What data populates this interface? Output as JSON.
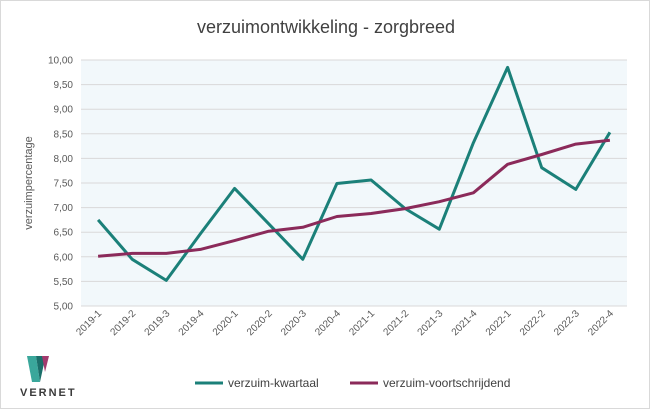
{
  "chart_data": {
    "type": "line",
    "title": "verzuimontwikkeling - zorgbreed",
    "ylabel": "verzuimpercentage",
    "xlabel": "",
    "ylim": [
      5.0,
      10.0
    ],
    "y_ticks": [
      "5,00",
      "5,50",
      "6,00",
      "6,50",
      "7,00",
      "7,50",
      "8,00",
      "8,50",
      "9,00",
      "9,50",
      "10,00"
    ],
    "categories": [
      "2019-1",
      "2019-2",
      "2019-3",
      "2019-4",
      "2020-1",
      "2020-2",
      "2020-3",
      "2020-4",
      "2021-1",
      "2021-2",
      "2021-3",
      "2021-4",
      "2022-1",
      "2022-2",
      "2022-3",
      "2022-4"
    ],
    "series": [
      {
        "name": "verzuim-kwartaal",
        "color": "#1b8079",
        "values": [
          6.75,
          5.95,
          5.52,
          6.47,
          7.39,
          6.67,
          5.95,
          7.49,
          7.56,
          6.98,
          6.56,
          8.32,
          9.85,
          7.81,
          7.37,
          8.53
        ]
      },
      {
        "name": "verzuim-voortschrijdend",
        "color": "#8b2a5a",
        "values": [
          6.01,
          6.07,
          6.07,
          6.15,
          6.33,
          6.52,
          6.6,
          6.82,
          6.88,
          6.98,
          7.12,
          7.3,
          7.88,
          8.08,
          8.29,
          8.37
        ]
      }
    ],
    "grid": true,
    "legend_position": "bottom"
  },
  "logo": {
    "text": "VERNET",
    "colors": [
      "#3aa79b",
      "#1b6f6a",
      "#a33a6e"
    ]
  }
}
